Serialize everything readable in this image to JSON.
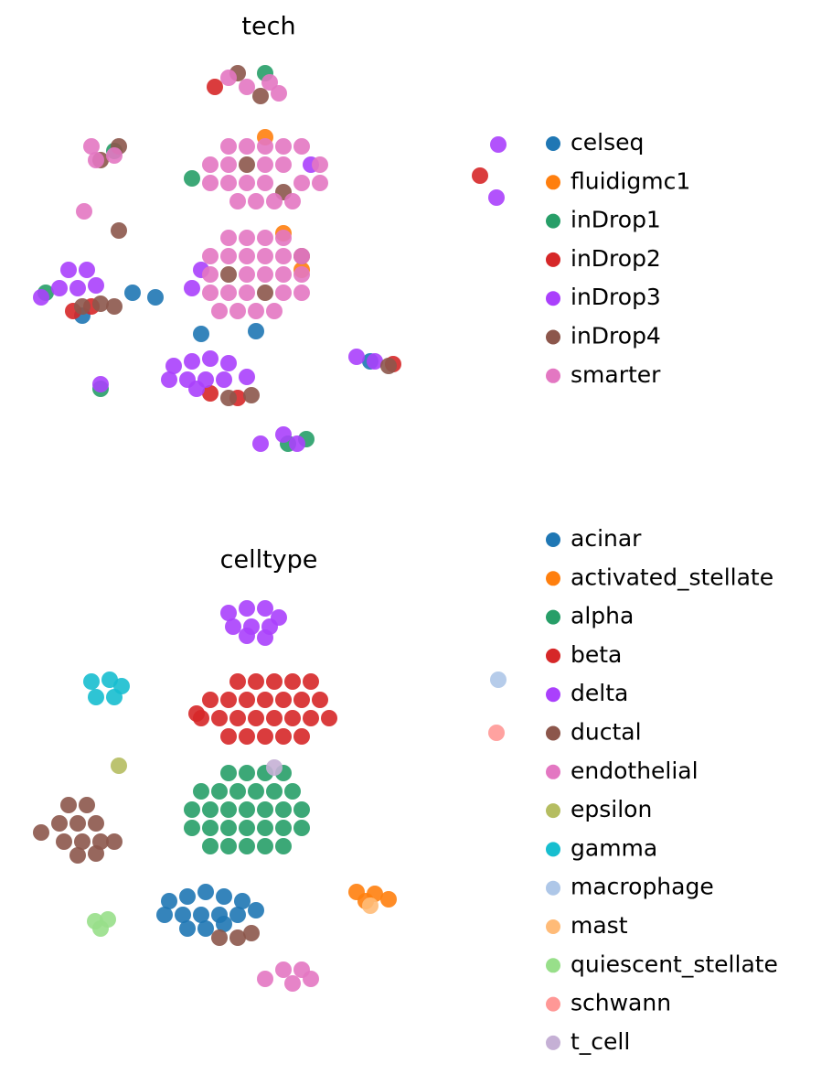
{
  "chart_data": [
    {
      "type": "scatter",
      "title": "tech",
      "xlim": [
        0,
        53
      ],
      "ylim": [
        0,
        45
      ],
      "series": [
        {
          "name": "celseq",
          "color": "#1f77b4",
          "x": [
            19,
            14,
            6,
            25,
            37.5,
            11.5
          ],
          "y": [
            14.5,
            18.5,
            16.5,
            14.8,
            11.5,
            19
          ]
        },
        {
          "name": "fluidigmc1",
          "color": "#ff7f0e",
          "x": [
            26,
            30,
            28
          ],
          "y": [
            36,
            21.5,
            25.5
          ]
        },
        {
          "name": "inDrop1",
          "color": "#279e68",
          "x": [
            18,
            2,
            28.5,
            30.5,
            8,
            26,
            9.5
          ],
          "y": [
            31.5,
            19,
            2.5,
            3,
            8.5,
            43,
            34.5
          ]
        },
        {
          "name": "inDrop2",
          "color": "#d62728",
          "x": [
            20,
            23,
            5,
            7,
            40,
            20.5,
            49.5
          ],
          "y": [
            8,
            7.5,
            17,
            17.5,
            11.2,
            41.5,
            31.8
          ]
        },
        {
          "name": "inDrop3",
          "color": "#aa40fc",
          "x": [
            16,
            18,
            20,
            22,
            15.5,
            17.5,
            19.5,
            21.5,
            24,
            18.5,
            4.5,
            6.5,
            3.5,
            5.5,
            7.5,
            1.5,
            18,
            19,
            36,
            38,
            8,
            28,
            29.5,
            25.5,
            31,
            51.5,
            51.3
          ],
          "y": [
            11,
            11.5,
            11.8,
            11.3,
            9.5,
            9.5,
            9.5,
            9.5,
            9.8,
            8.5,
            21.5,
            21.5,
            19.5,
            19.5,
            19.8,
            18.5,
            19.5,
            21.5,
            12,
            11.5,
            9,
            3.5,
            2.5,
            2.5,
            33,
            35.2,
            29.4
          ]
        },
        {
          "name": "inDrop4",
          "color": "#8c564b",
          "x": [
            6,
            8,
            22,
            24.5,
            39.5,
            23,
            25.5,
            8,
            10,
            24,
            28,
            22,
            26,
            30,
            10,
            9.5
          ],
          "y": [
            17.5,
            17.8,
            7.5,
            7.8,
            11,
            43,
            40.5,
            33.5,
            35,
            33,
            30,
            21,
            19,
            23,
            25.8,
            17.5
          ]
        },
        {
          "name": "smarter",
          "color": "#e377c2",
          "x": [
            22,
            24,
            26,
            28,
            30,
            20,
            22,
            26,
            28,
            32,
            20,
            22,
            24,
            26,
            30,
            32,
            23,
            25,
            27,
            29,
            22,
            24,
            26,
            28,
            20,
            22,
            24,
            26,
            28,
            30,
            20,
            24,
            26,
            28,
            30,
            20,
            22,
            24,
            28,
            30,
            21,
            23,
            25,
            27,
            7,
            9.5,
            7.5,
            22,
            24,
            26.5,
            27.5,
            6.2
          ],
          "y": [
            35,
            35,
            35,
            35,
            35,
            33,
            33,
            33,
            33,
            33,
            31,
            31,
            31,
            31,
            31,
            31,
            29,
            29,
            29,
            29,
            25,
            25,
            25,
            25,
            23,
            23,
            23,
            23,
            23,
            23,
            21,
            21,
            21,
            21,
            21,
            19,
            19,
            19,
            19,
            19,
            17,
            17,
            17,
            17,
            35,
            34,
            33.5,
            42.5,
            41.5,
            42,
            40.8,
            27.9
          ]
        }
      ]
    },
    {
      "type": "scatter",
      "title": "celltype",
      "xlim": [
        0,
        53
      ],
      "ylim": [
        0,
        45
      ],
      "series": [
        {
          "name": "acinar",
          "color": "#1f77b4",
          "x": [
            15.5,
            17.5,
            19.5,
            21.5,
            23.5,
            15,
            17,
            19,
            21,
            23,
            25,
            17.5,
            19.5,
            21.5
          ],
          "y": [
            11,
            11.5,
            12,
            11.5,
            11,
            9.5,
            9.5,
            9.5,
            9.5,
            9.5,
            10,
            8,
            8,
            8.5
          ]
        },
        {
          "name": "activated_stellate",
          "color": "#ff7f0e",
          "x": [
            36,
            38,
            39.5,
            37
          ],
          "y": [
            12,
            11.8,
            11.2,
            11
          ]
        },
        {
          "name": "alpha",
          "color": "#279e68",
          "x": [
            22,
            24,
            26,
            28,
            19,
            21,
            23,
            25,
            27,
            29,
            18,
            20,
            22,
            24,
            26,
            28,
            30,
            18,
            20,
            22,
            24,
            26,
            28,
            30,
            20,
            22,
            24,
            26,
            28
          ],
          "y": [
            25,
            25,
            25,
            25,
            23,
            23,
            23,
            23,
            23,
            23,
            21,
            21,
            21,
            21,
            21,
            21,
            21,
            19,
            19,
            19,
            19,
            19,
            19,
            19,
            17,
            17,
            17,
            17,
            17
          ]
        },
        {
          "name": "beta",
          "color": "#d62728",
          "x": [
            23,
            25,
            27,
            29,
            31,
            20,
            22,
            24,
            26,
            28,
            30,
            32,
            19,
            21,
            23,
            25,
            27,
            29,
            31,
            33,
            22,
            24,
            26,
            28,
            30,
            18.5
          ],
          "y": [
            35,
            35,
            35,
            35,
            35,
            33,
            33,
            33,
            33,
            33,
            33,
            33,
            31,
            31,
            31,
            31,
            31,
            31,
            31,
            31,
            29,
            29,
            29,
            29,
            29,
            31.5
          ]
        },
        {
          "name": "delta",
          "color": "#aa40fc",
          "x": [
            22,
            24,
            26,
            27.5,
            22.5,
            24.5,
            26.5,
            24,
            26
          ],
          "y": [
            42.5,
            43,
            43,
            42,
            41,
            41,
            41,
            40,
            39.8
          ]
        },
        {
          "name": "ductal",
          "color": "#8c564b",
          "x": [
            4.5,
            6.5,
            3.5,
            5.5,
            7.5,
            1.5,
            4,
            6,
            8,
            5.5,
            7.5,
            21,
            23,
            24.5,
            9.5
          ],
          "y": [
            21.5,
            21.5,
            19.5,
            19.5,
            19.5,
            18.5,
            17.5,
            17.5,
            17.5,
            16,
            16.2,
            7,
            7,
            7.5,
            17.5
          ]
        },
        {
          "name": "endothelial",
          "color": "#e377c2",
          "x": [
            28,
            30,
            31,
            29,
            26
          ],
          "y": [
            3.5,
            3.5,
            2.5,
            2,
            2.5
          ]
        },
        {
          "name": "epsilon",
          "color": "#b5bd61",
          "x": [
            10
          ],
          "y": [
            25.8
          ]
        },
        {
          "name": "gamma",
          "color": "#17becf",
          "x": [
            7,
            9,
            10.3,
            7.5,
            9.5
          ],
          "y": [
            35,
            35.2,
            34.5,
            33.3,
            33.3
          ]
        },
        {
          "name": "macrophage",
          "color": "#aec7e8",
          "x": [
            51.5
          ],
          "y": [
            35.2
          ]
        },
        {
          "name": "mast",
          "color": "#ffbb78",
          "x": [
            37.5
          ],
          "y": [
            10.5
          ]
        },
        {
          "name": "quiescent_stellate",
          "color": "#98df8a",
          "x": [
            7.4,
            8.8,
            8
          ],
          "y": [
            8.8,
            9,
            8
          ]
        },
        {
          "name": "schwann",
          "color": "#ff9896",
          "x": [
            51.3
          ],
          "y": [
            29.4
          ]
        },
        {
          "name": "t_cell",
          "color": "#c5b0d5",
          "x": [
            27
          ],
          "y": [
            25.6
          ]
        }
      ]
    }
  ]
}
